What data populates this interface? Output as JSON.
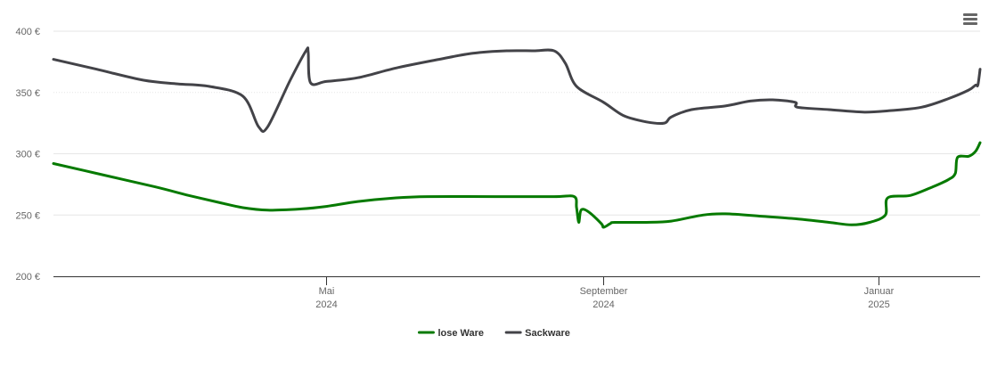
{
  "menu": {
    "icon": "hamburger-menu-icon"
  },
  "chart_data": {
    "type": "line",
    "title": "",
    "xlabel": "",
    "ylabel": "",
    "ylim": [
      200,
      400
    ],
    "yticks": [
      200,
      250,
      300,
      350,
      400
    ],
    "ytick_suffix": " €",
    "xlim": [
      "2024-01-01",
      "2025-02-15"
    ],
    "xticks": [
      {
        "date": "2024-05-01",
        "month": "Mai",
        "year": "2024"
      },
      {
        "date": "2024-09-01",
        "month": "September",
        "year": "2024"
      },
      {
        "date": "2025-01-01",
        "month": "Januar",
        "year": "2025"
      }
    ],
    "grid": true,
    "legend_position": "bottom-center",
    "series": [
      {
        "name": "lose Ware",
        "color": "#067a00",
        "points": [
          [
            "2024-01-01",
            292
          ],
          [
            "2024-01-20",
            284
          ],
          [
            "2024-02-15",
            273
          ],
          [
            "2024-03-01",
            266
          ],
          [
            "2024-03-15",
            260
          ],
          [
            "2024-03-25",
            256
          ],
          [
            "2024-04-05",
            254
          ],
          [
            "2024-04-20",
            255
          ],
          [
            "2024-05-01",
            257
          ],
          [
            "2024-05-15",
            261
          ],
          [
            "2024-06-01",
            264
          ],
          [
            "2024-06-15",
            265
          ],
          [
            "2024-07-15",
            265
          ],
          [
            "2024-08-10",
            265
          ],
          [
            "2024-08-19",
            265
          ],
          [
            "2024-08-20",
            256
          ],
          [
            "2024-08-21",
            244
          ],
          [
            "2024-08-22",
            254
          ],
          [
            "2024-08-25",
            253
          ],
          [
            "2024-08-31",
            243
          ],
          [
            "2024-09-01",
            240
          ],
          [
            "2024-09-04",
            243
          ],
          [
            "2024-09-06",
            244
          ],
          [
            "2024-09-20",
            244
          ],
          [
            "2024-10-01",
            245
          ],
          [
            "2024-10-15",
            250
          ],
          [
            "2024-10-25",
            251
          ],
          [
            "2024-11-10",
            249
          ],
          [
            "2024-11-25",
            247
          ],
          [
            "2024-12-10",
            244
          ],
          [
            "2024-12-20",
            242
          ],
          [
            "2024-12-28",
            244
          ],
          [
            "2025-01-04",
            250
          ],
          [
            "2025-01-05",
            264
          ],
          [
            "2025-01-15",
            266
          ],
          [
            "2025-01-25",
            273
          ],
          [
            "2025-02-01",
            279
          ],
          [
            "2025-02-04",
            284
          ],
          [
            "2025-02-05",
            297
          ],
          [
            "2025-02-10",
            298
          ],
          [
            "2025-02-13",
            302
          ],
          [
            "2025-02-15",
            309
          ]
        ]
      },
      {
        "name": "Sackware",
        "color": "#434348",
        "points": [
          [
            "2024-01-01",
            377
          ],
          [
            "2024-01-20",
            369
          ],
          [
            "2024-02-10",
            360
          ],
          [
            "2024-02-25",
            357
          ],
          [
            "2024-03-10",
            355
          ],
          [
            "2024-03-25",
            347
          ],
          [
            "2024-04-01",
            322
          ],
          [
            "2024-04-05",
            322
          ],
          [
            "2024-04-15",
            360
          ],
          [
            "2024-04-22",
            384
          ],
          [
            "2024-04-23",
            383
          ],
          [
            "2024-04-24",
            358
          ],
          [
            "2024-05-01",
            359
          ],
          [
            "2024-05-15",
            362
          ],
          [
            "2024-06-01",
            370
          ],
          [
            "2024-06-20",
            377
          ],
          [
            "2024-07-05",
            382
          ],
          [
            "2024-07-20",
            384
          ],
          [
            "2024-08-01",
            384
          ],
          [
            "2024-08-10",
            384
          ],
          [
            "2024-08-15",
            374
          ],
          [
            "2024-08-20",
            355
          ],
          [
            "2024-09-01",
            342
          ],
          [
            "2024-09-10",
            331
          ],
          [
            "2024-09-20",
            326
          ],
          [
            "2024-09-28",
            325
          ],
          [
            "2024-10-01",
            330
          ],
          [
            "2024-10-10",
            336
          ],
          [
            "2024-10-25",
            339
          ],
          [
            "2024-11-05",
            343
          ],
          [
            "2024-11-15",
            344
          ],
          [
            "2024-11-25",
            342
          ],
          [
            "2024-11-26",
            338
          ],
          [
            "2024-12-10",
            336
          ],
          [
            "2024-12-25",
            334
          ],
          [
            "2025-01-05",
            335
          ],
          [
            "2025-01-20",
            338
          ],
          [
            "2025-02-01",
            345
          ],
          [
            "2025-02-10",
            352
          ],
          [
            "2025-02-13",
            356
          ],
          [
            "2025-02-14",
            356
          ],
          [
            "2025-02-15",
            369
          ]
        ]
      }
    ]
  }
}
